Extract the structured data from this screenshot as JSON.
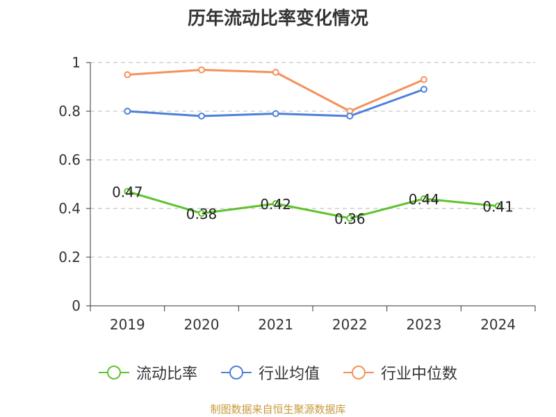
{
  "chart_data": {
    "type": "line",
    "title": "历年流动比率变化情况",
    "categories": [
      "2019",
      "2020",
      "2021",
      "2022",
      "2023",
      "2024"
    ],
    "ylim": [
      0,
      1
    ],
    "yticks": [
      "0",
      "0.2",
      "0.4",
      "0.6",
      "0.8",
      "1"
    ],
    "ytick_values": [
      0,
      0.2,
      0.4,
      0.6,
      0.8,
      1.0
    ],
    "grid": true,
    "legend_position": "bottom",
    "series": [
      {
        "name": "流动比率",
        "color": "#5fc22f",
        "values": [
          0.47,
          0.38,
          0.42,
          0.36,
          0.44,
          0.41
        ],
        "data_labels": [
          "0.47",
          "0.38",
          "0.42",
          "0.36",
          "0.44",
          "0.41"
        ]
      },
      {
        "name": "行业均值",
        "color": "#4e7fd9",
        "values": [
          0.8,
          0.78,
          0.79,
          0.78,
          0.89,
          null
        ]
      },
      {
        "name": "行业中位数",
        "color": "#f4915a",
        "values": [
          0.95,
          0.97,
          0.96,
          0.8,
          0.93,
          null
        ]
      }
    ]
  },
  "legend": {
    "items": [
      "流动比率",
      "行业均值",
      "行业中位数"
    ]
  },
  "footer": {
    "source": "制图数据来自恒生聚源数据库"
  }
}
